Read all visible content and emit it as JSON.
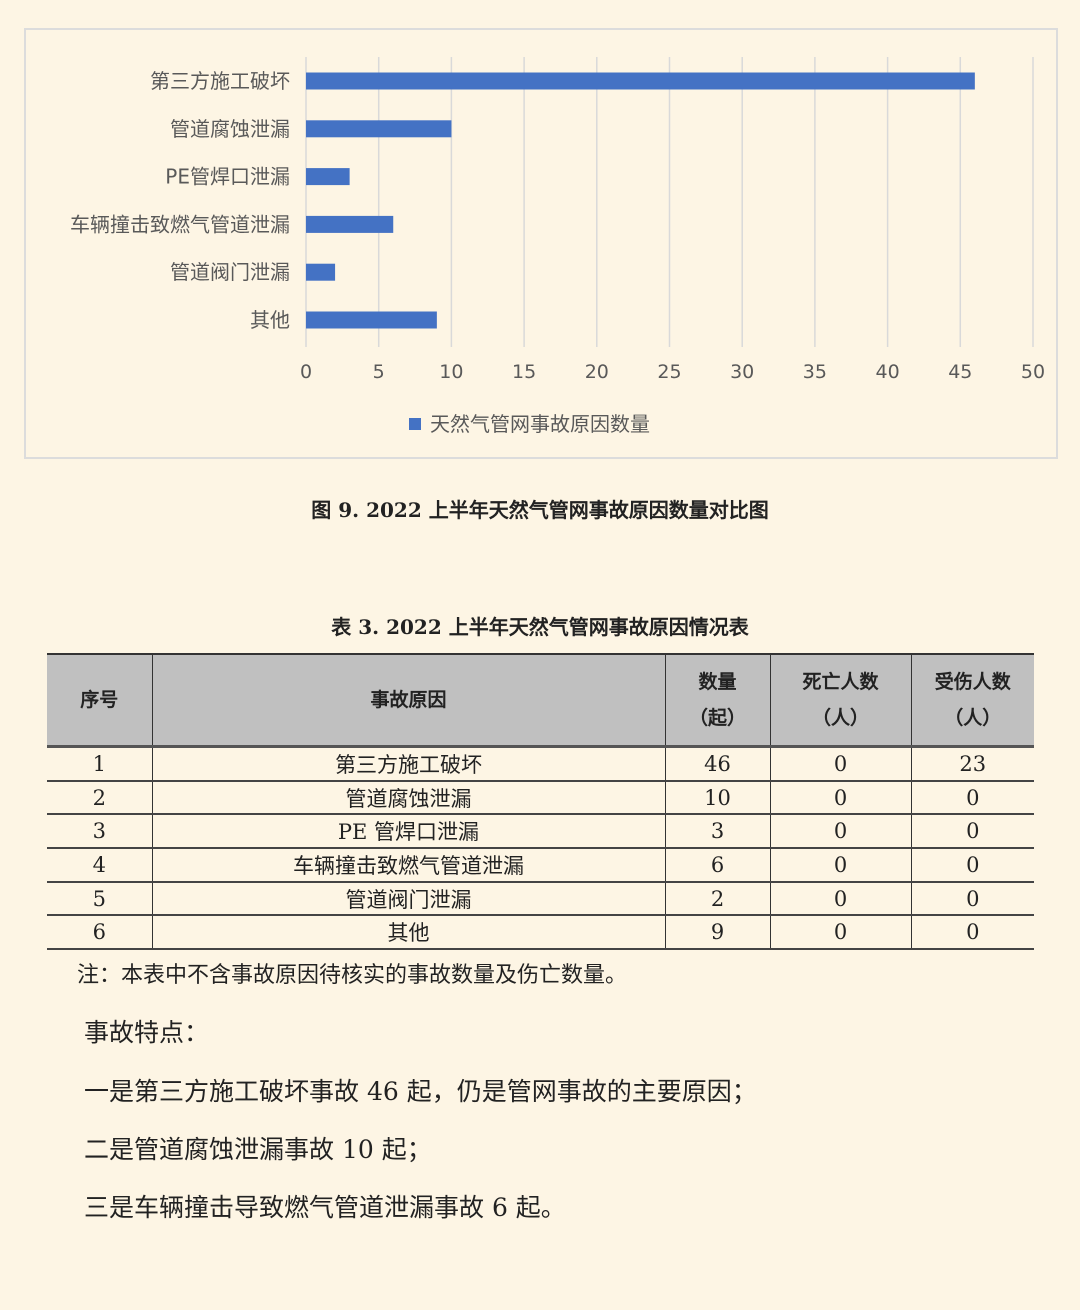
{
  "chart_data": {
    "type": "bar",
    "orientation": "horizontal",
    "categories": [
      "第三方施工破坏",
      "管道腐蚀泄漏",
      "PE管焊口泄漏",
      "车辆撞击致燃气管道泄漏",
      "管道阀门泄漏",
      "其他"
    ],
    "series": [
      {
        "name": "天然气管网事故原因数量",
        "values": [
          46,
          10,
          3,
          6,
          2,
          9
        ],
        "color": "#4472c4"
      }
    ],
    "xlim": [
      0,
      50
    ],
    "xticks": [
      0,
      5,
      10,
      15,
      20,
      25,
      30,
      35,
      40,
      45,
      50
    ],
    "grid": true,
    "legend": "bottom"
  },
  "figure_caption": "图 9. 2022 上半年天然气管网事故原因数量对比图",
  "table": {
    "caption": "表 3. 2022 上半年天然气管网事故原因情况表",
    "headers": [
      [
        "序号"
      ],
      [
        "事故原因"
      ],
      [
        "数量",
        "（起）"
      ],
      [
        "死亡人数",
        "（人）"
      ],
      [
        "受伤人数",
        "（人）"
      ]
    ],
    "rows": [
      [
        "1",
        "第三方施工破坏",
        "46",
        "0",
        "23"
      ],
      [
        "2",
        "管道腐蚀泄漏",
        "10",
        "0",
        "0"
      ],
      [
        "3",
        "PE 管焊口泄漏",
        "3",
        "0",
        "0"
      ],
      [
        "4",
        "车辆撞击致燃气管道泄漏",
        "6",
        "0",
        "0"
      ],
      [
        "5",
        "管道阀门泄漏",
        "2",
        "0",
        "0"
      ],
      [
        "6",
        "其他",
        "9",
        "0",
        "0"
      ]
    ],
    "header_color": "#c0c0c0"
  },
  "note": "注：本表中不含事故原因待核实的事故数量及伤亡数量。",
  "paragraphs": [
    "事故特点：",
    "一是第三方施工破坏事故 46 起，仍是管网事故的主要原因；",
    "二是管道腐蚀泄漏事故 10 起；",
    "三是车辆撞击导致燃气管道泄漏事故 6 起。"
  ]
}
